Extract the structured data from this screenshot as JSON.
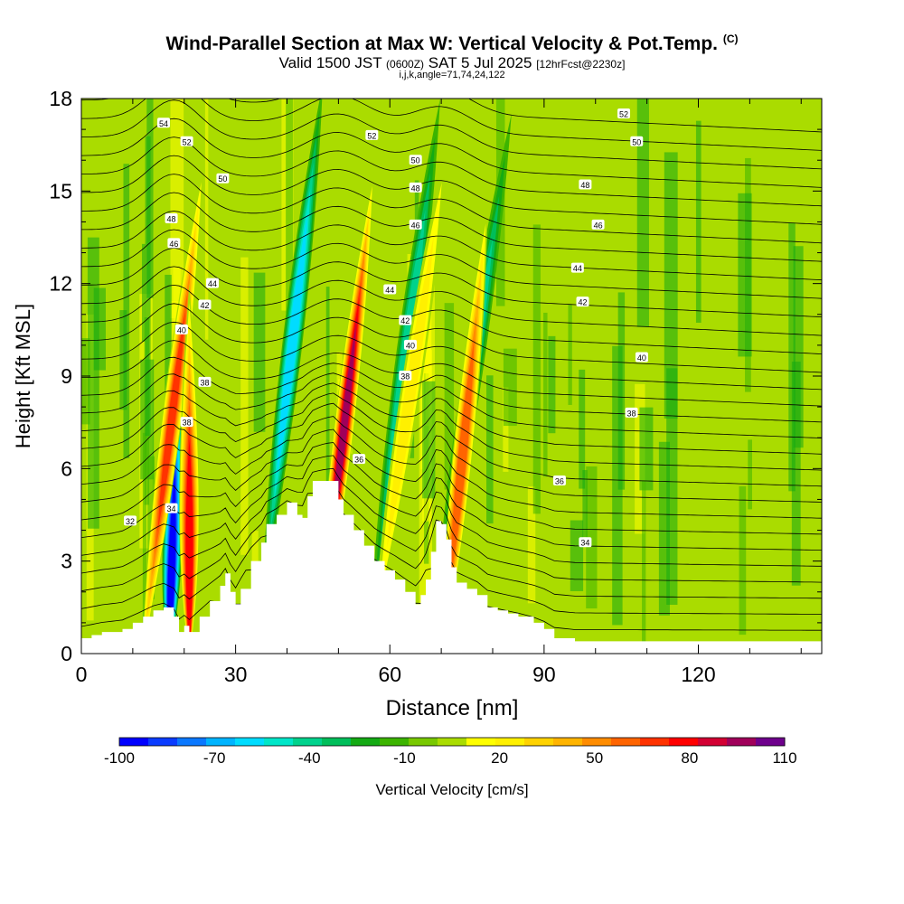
{
  "title": {
    "main": "Wind-Parallel Section at Max W: Vertical Velocity & Pot.Temp.",
    "copyright": "(C)",
    "valid_prefix": "Valid 1500 JST",
    "valid_utc": "(0600Z)",
    "valid_date": "SAT 5 Jul 2025",
    "forecast": "[12hrFcst@2230z]",
    "params": "i,j,k,angle=71,74,24,122"
  },
  "chart_data": {
    "type": "heatmap",
    "xlabel": "Distance [nm]",
    "ylabel": "Height [Kft MSL]",
    "xlim": [
      0,
      144
    ],
    "ylim": [
      0,
      18
    ],
    "x_ticks": [
      0,
      30,
      60,
      90,
      120
    ],
    "y_ticks": [
      0,
      3,
      6,
      9,
      12,
      15,
      18
    ],
    "terrain_kft": [
      [
        0,
        0.5
      ],
      [
        2,
        0.6
      ],
      [
        4,
        0.7
      ],
      [
        8,
        0.8
      ],
      [
        10,
        1.0
      ],
      [
        12,
        1.2
      ],
      [
        14,
        1.4
      ],
      [
        16,
        1.5
      ],
      [
        18,
        1.2
      ],
      [
        19,
        0.7
      ],
      [
        20,
        0.9
      ],
      [
        21,
        0.7
      ],
      [
        23,
        1.2
      ],
      [
        25,
        1.7
      ],
      [
        27,
        2.2
      ],
      [
        28,
        2.6
      ],
      [
        29,
        2.0
      ],
      [
        30,
        1.6
      ],
      [
        31,
        2.1
      ],
      [
        33,
        3.0
      ],
      [
        35,
        3.6
      ],
      [
        36,
        4.2
      ],
      [
        38,
        4.5
      ],
      [
        40,
        4.9
      ],
      [
        42,
        4.5
      ],
      [
        43,
        4.4
      ],
      [
        44,
        5.1
      ],
      [
        45,
        5.6
      ],
      [
        48,
        5.6
      ],
      [
        49,
        5.6
      ],
      [
        50,
        5.0
      ],
      [
        51,
        4.5
      ],
      [
        53,
        4.0
      ],
      [
        55,
        3.5
      ],
      [
        57,
        3.0
      ],
      [
        59,
        2.7
      ],
      [
        61,
        2.4
      ],
      [
        63,
        2.0
      ],
      [
        65,
        1.6
      ],
      [
        66,
        1.9
      ],
      [
        67,
        2.4
      ],
      [
        68,
        3.3
      ],
      [
        69,
        4.3
      ],
      [
        70,
        4.2
      ],
      [
        71,
        3.7
      ],
      [
        72,
        2.8
      ],
      [
        73,
        2.3
      ],
      [
        75,
        2.1
      ],
      [
        77,
        1.9
      ],
      [
        79,
        1.5
      ],
      [
        81,
        1.4
      ],
      [
        83,
        1.3
      ],
      [
        85,
        1.2
      ],
      [
        88,
        1.0
      ],
      [
        90,
        0.8
      ],
      [
        92,
        0.5
      ],
      [
        96,
        0.4
      ],
      [
        144,
        0.4
      ]
    ],
    "updrafts": [
      {
        "x": 17.5,
        "y": 7.5,
        "peak_cms": 80,
        "slope_nm_per_kft": 0.75
      },
      {
        "x": 21,
        "y": 3.5,
        "peak_cms": 90,
        "slope_nm_per_kft": 0
      },
      {
        "x": 51,
        "y": 7.2,
        "peak_cms": 110,
        "slope_nm_per_kft": 0.7
      },
      {
        "x": 64,
        "y": 8.5,
        "peak_cms": 30,
        "slope_nm_per_kft": 0.9
      },
      {
        "x": 74,
        "y": 6.2,
        "peak_cms": 75,
        "slope_nm_per_kft": 0.6
      }
    ],
    "downdrafts": [
      {
        "x": 17.5,
        "y": 2.5,
        "peak_cms": -100,
        "slope_nm_per_kft": 0.2
      },
      {
        "x": 41,
        "y": 10.0,
        "peak_cms": -65,
        "slope_nm_per_kft": 0.7
      },
      {
        "x": 63,
        "y": 9.5,
        "peak_cms": -45,
        "slope_nm_per_kft": 0.8
      },
      {
        "x": 76,
        "y": 9.0,
        "peak_cms": -40,
        "slope_nm_per_kft": 0.9
      }
    ],
    "theta_contour_labels": [
      {
        "value": "54",
        "x": 16,
        "y": 17.2
      },
      {
        "value": "52",
        "x": 20.5,
        "y": 16.6
      },
      {
        "value": "50",
        "x": 27.5,
        "y": 15.4
      },
      {
        "value": "48",
        "x": 17.5,
        "y": 14.1
      },
      {
        "value": "46",
        "x": 18,
        "y": 13.3
      },
      {
        "value": "44",
        "x": 25.5,
        "y": 12.0
      },
      {
        "value": "42",
        "x": 24,
        "y": 11.3
      },
      {
        "value": "40",
        "x": 19.5,
        "y": 10.5
      },
      {
        "value": "38",
        "x": 24,
        "y": 8.8
      },
      {
        "value": "38",
        "x": 20.5,
        "y": 7.5
      },
      {
        "value": "32",
        "x": 9.5,
        "y": 4.3
      },
      {
        "value": "34",
        "x": 17.5,
        "y": 4.7
      },
      {
        "value": "52",
        "x": 56.5,
        "y": 16.8
      },
      {
        "value": "50",
        "x": 65,
        "y": 16.0
      },
      {
        "value": "48",
        "x": 65,
        "y": 15.1
      },
      {
        "value": "46",
        "x": 65,
        "y": 13.9
      },
      {
        "value": "44",
        "x": 60,
        "y": 11.8
      },
      {
        "value": "42",
        "x": 63,
        "y": 10.8
      },
      {
        "value": "40",
        "x": 64,
        "y": 10.0
      },
      {
        "value": "38",
        "x": 63,
        "y": 9.0
      },
      {
        "value": "36",
        "x": 54,
        "y": 6.3
      },
      {
        "value": "52",
        "x": 105.5,
        "y": 17.5
      },
      {
        "value": "50",
        "x": 108,
        "y": 16.6
      },
      {
        "value": "48",
        "x": 98,
        "y": 15.2
      },
      {
        "value": "46",
        "x": 100.5,
        "y": 13.9
      },
      {
        "value": "44",
        "x": 96.5,
        "y": 12.5
      },
      {
        "value": "42",
        "x": 97.5,
        "y": 11.4
      },
      {
        "value": "40",
        "x": 109,
        "y": 9.6
      },
      {
        "value": "38",
        "x": 107,
        "y": 7.8
      },
      {
        "value": "36",
        "x": 93,
        "y": 5.6
      },
      {
        "value": "34",
        "x": 98,
        "y": 3.6
      }
    ],
    "colorbar": {
      "label": "Vertical Velocity [cm/s]",
      "tick_labels": [
        "-100",
        "-70",
        "-40",
        "-10",
        "20",
        "50",
        "80",
        "110"
      ],
      "min": -100,
      "max": 110,
      "step": 10,
      "colors": [
        "#0000ff",
        "#0a3cff",
        "#0a78ff",
        "#00b4ff",
        "#00dcff",
        "#00e6c8",
        "#00d28c",
        "#00be5a",
        "#14aa14",
        "#3cb400",
        "#78c800",
        "#aadc00",
        "#ffff00",
        "#fff000",
        "#ffd200",
        "#ffb400",
        "#ff8c00",
        "#ff6400",
        "#ff3200",
        "#ff0000",
        "#d20032",
        "#a0005a",
        "#6e008c"
      ]
    }
  }
}
